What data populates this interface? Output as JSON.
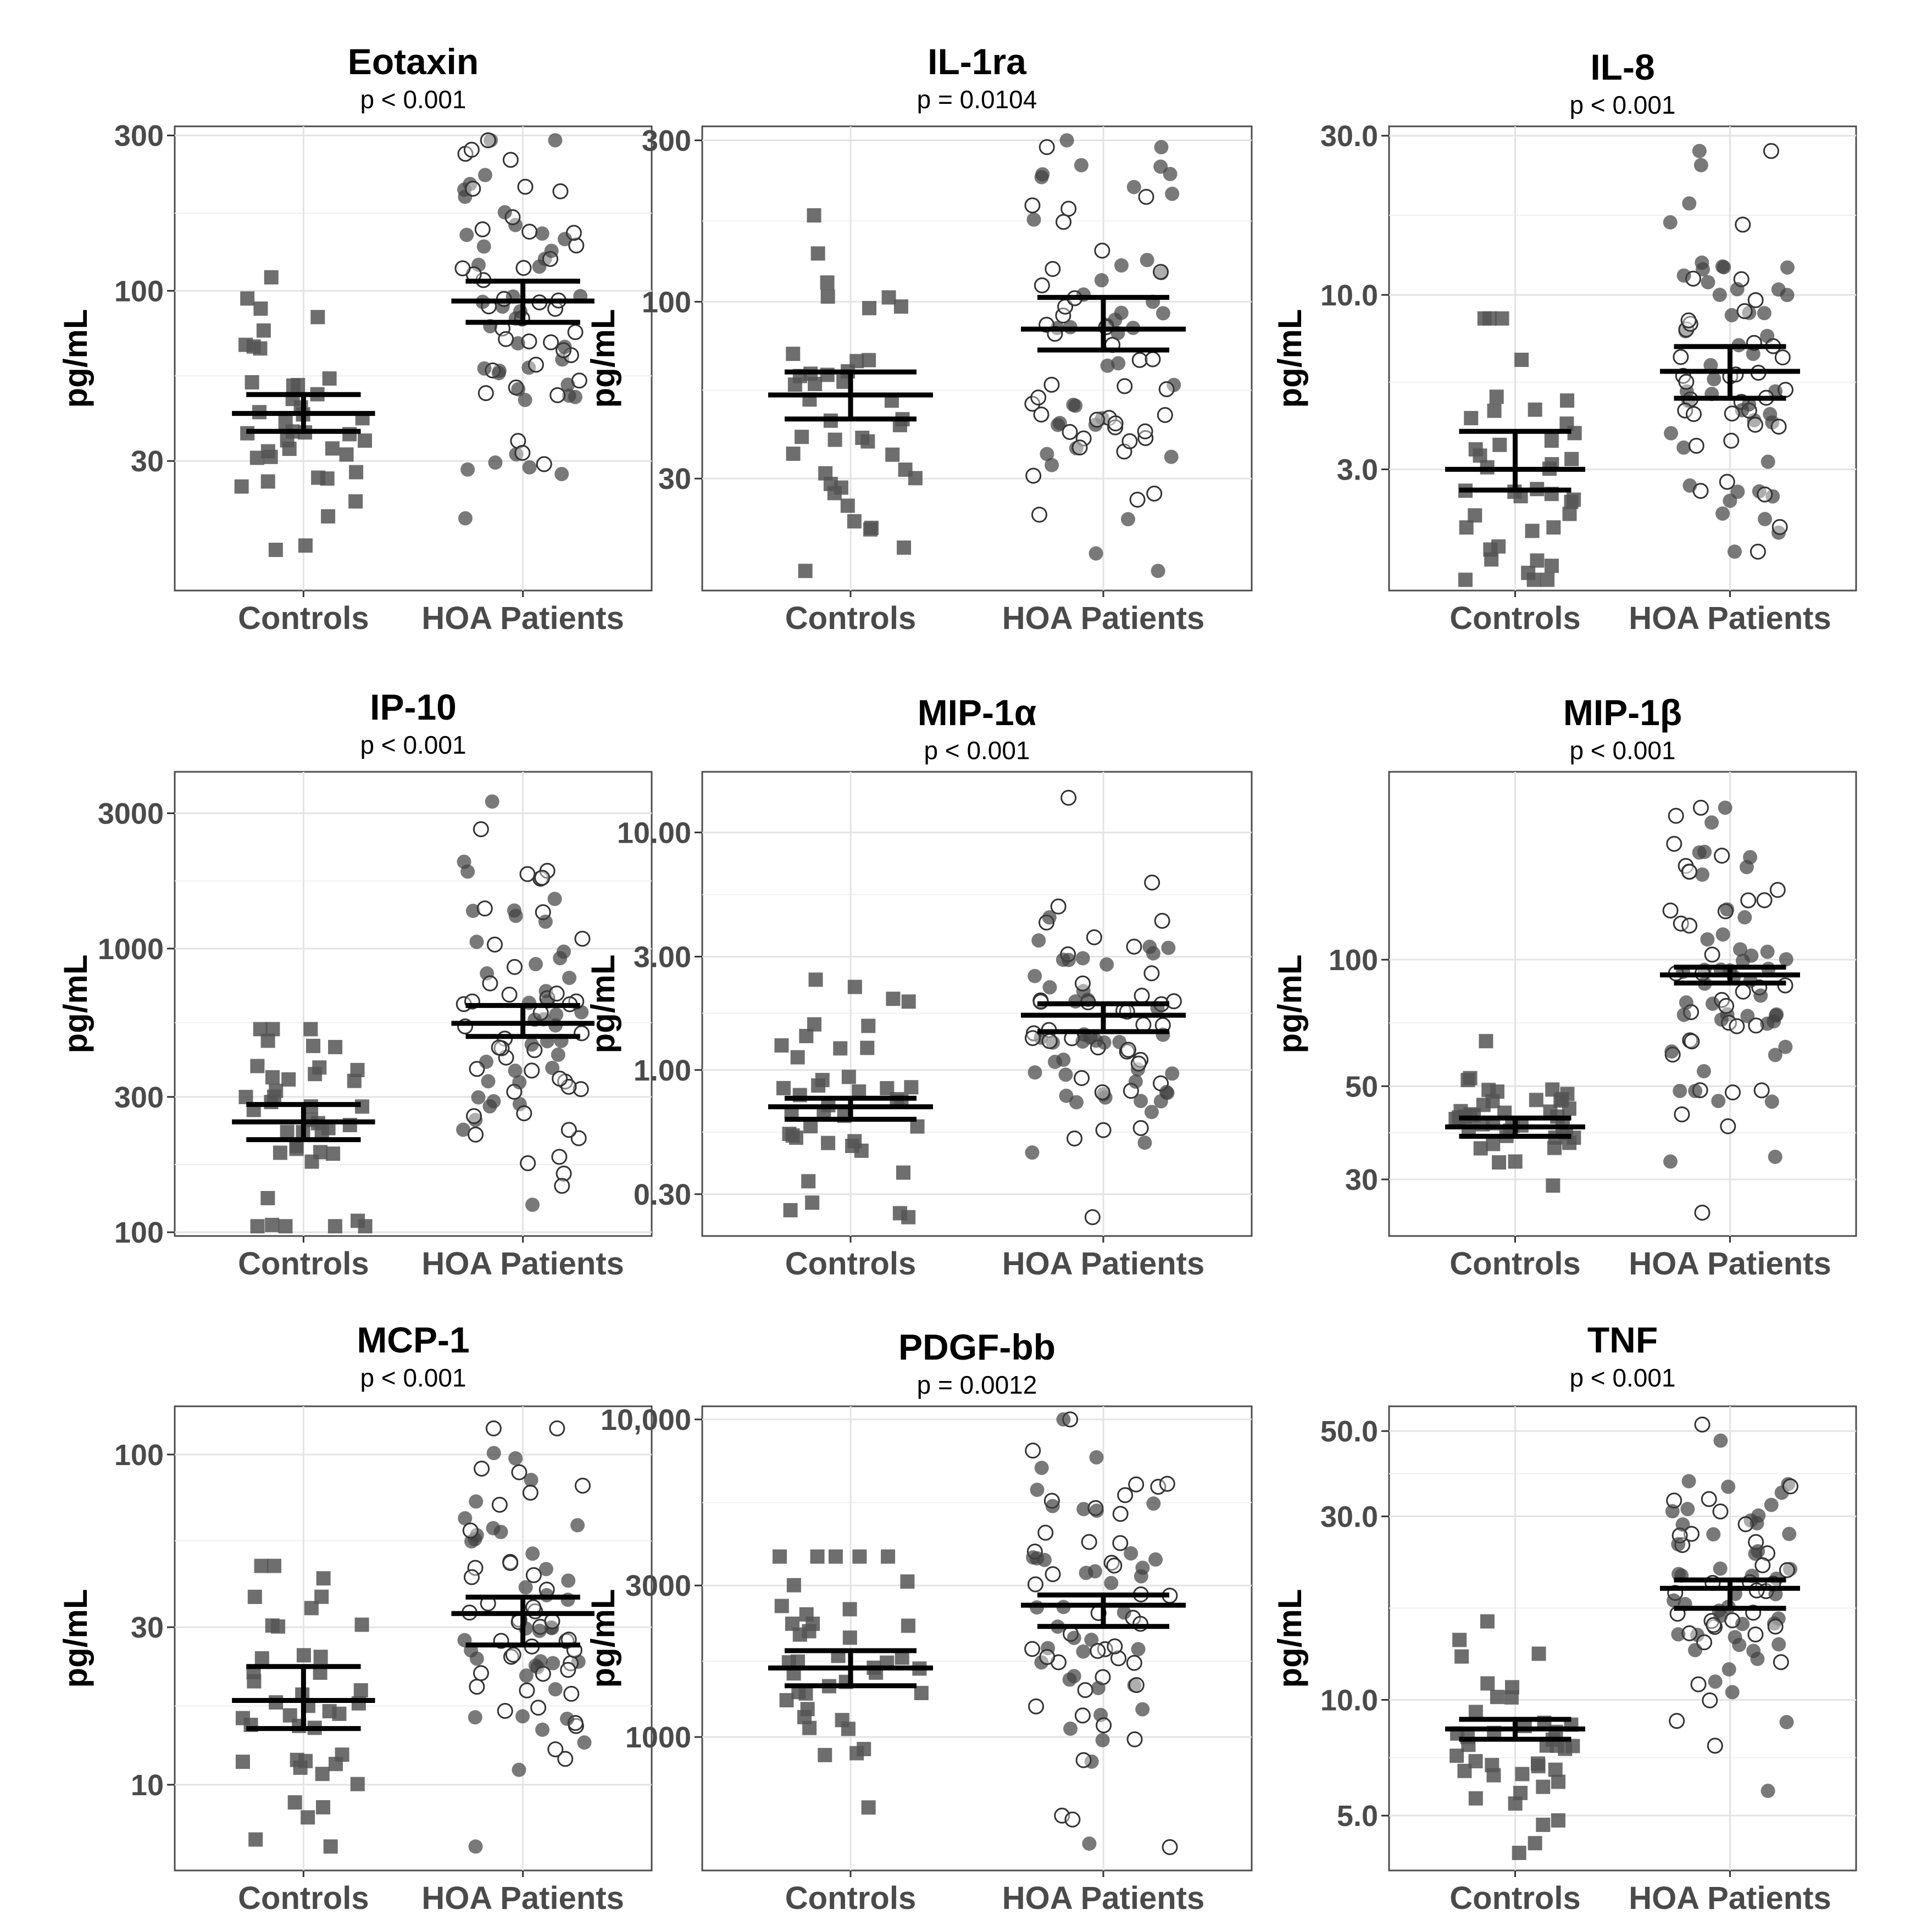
{
  "figure": {
    "ylabel": "pg/mL",
    "categories": [
      "Controls",
      "HOA Patients"
    ]
  },
  "colors": {
    "control_marker": "#555555",
    "filled_patient": "#404040",
    "open_patient_stroke": "#333333",
    "summary": "#000000",
    "grid": "#e3e3e3",
    "frame": "#4d4d4d"
  },
  "chart_data": [
    {
      "type": "scatter",
      "scale": "log10",
      "title": "Eotaxin",
      "pvalue": "p < 0.001",
      "ylabel": "pg/mL",
      "categories": [
        "Controls",
        "HOA Patients"
      ],
      "ylim": [
        12,
        320
      ],
      "yticks": [
        30,
        100,
        300
      ],
      "ytick_labels": [
        "30",
        "100",
        "300"
      ],
      "summary": [
        {
          "group": "Controls",
          "mean": 42,
          "ci": [
            37,
            48
          ]
        },
        {
          "group": "HOA Patients",
          "mean": 93,
          "ci": [
            80,
            107
          ]
        }
      ],
      "groups": [
        {
          "name": "Controls",
          "n": 40,
          "seed": 11,
          "gmean": 42,
          "gsd": 1.5,
          "min": 16,
          "max": 110
        },
        {
          "name": "HOA Patients",
          "n": 80,
          "seed": 12,
          "gmean": 93,
          "gsd": 1.85,
          "min": 20,
          "max": 290
        }
      ]
    },
    {
      "type": "scatter",
      "scale": "log10",
      "title": "IL-1ra",
      "pvalue": "p =  0.0104",
      "ylabel": "pg/mL",
      "categories": [
        "Controls",
        "HOA Patients"
      ],
      "ylim": [
        14,
        330
      ],
      "yticks": [
        30,
        100,
        300
      ],
      "ytick_labels": [
        "30",
        "100",
        "300"
      ],
      "summary": [
        {
          "group": "Controls",
          "mean": 53,
          "ci": [
            45,
            62
          ]
        },
        {
          "group": "HOA Patients",
          "mean": 83,
          "ci": [
            72,
            103
          ]
        }
      ],
      "groups": [
        {
          "name": "Controls",
          "n": 40,
          "seed": 21,
          "gmean": 53,
          "gsd": 1.75,
          "min": 16,
          "max": 180
        },
        {
          "name": "HOA Patients",
          "n": 80,
          "seed": 22,
          "gmean": 83,
          "gsd": 1.95,
          "min": 16,
          "max": 300
        }
      ]
    },
    {
      "type": "scatter",
      "scale": "log10",
      "title": "IL-8",
      "pvalue": "p < 0.001",
      "ylabel": "pg/mL",
      "categories": [
        "Controls",
        "HOA Patients"
      ],
      "ylim": [
        1.3,
        32
      ],
      "yticks": [
        3,
        10,
        30
      ],
      "ytick_labels": [
        "3.0",
        "10.0",
        "30.0"
      ],
      "summary": [
        {
          "group": "Controls",
          "mean": 3.0,
          "ci": [
            2.6,
            3.9
          ]
        },
        {
          "group": "HOA Patients",
          "mean": 5.9,
          "ci": [
            4.9,
            7.0
          ]
        }
      ],
      "groups": [
        {
          "name": "Controls",
          "n": 40,
          "seed": 31,
          "gmean": 3.0,
          "gsd": 1.75,
          "min": 1.4,
          "max": 8.5
        },
        {
          "name": "HOA Patients",
          "n": 80,
          "seed": 32,
          "gmean": 5.9,
          "gsd": 1.85,
          "min": 1.7,
          "max": 27
        }
      ]
    },
    {
      "type": "scatter",
      "scale": "log10",
      "title": "IP-10",
      "pvalue": "p < 0.001",
      "ylabel": "pg/mL",
      "categories": [
        "Controls",
        "HOA Patients"
      ],
      "ylim": [
        97,
        4200
      ],
      "yticks": [
        100,
        300,
        1000,
        3000
      ],
      "ytick_labels": [
        "100",
        "300",
        "1000",
        "3000"
      ],
      "summary": [
        {
          "group": "Controls",
          "mean": 245,
          "ci": [
            212,
            282
          ]
        },
        {
          "group": "HOA Patients",
          "mean": 545,
          "ci": [
            490,
            630
          ]
        }
      ],
      "groups": [
        {
          "name": "Controls",
          "n": 40,
          "seed": 41,
          "gmean": 245,
          "gsd": 1.55,
          "min": 105,
          "max": 520
        },
        {
          "name": "HOA Patients",
          "n": 80,
          "seed": 42,
          "gmean": 545,
          "gsd": 2.0,
          "min": 125,
          "max": 3300
        }
      ]
    },
    {
      "type": "scatter",
      "scale": "log10",
      "title": "MIP-1α",
      "pvalue": "p < 0.001",
      "ylabel": "pg/mL",
      "categories": [
        "Controls",
        "HOA Patients"
      ],
      "ylim": [
        0.2,
        18
      ],
      "yticks": [
        0.3,
        1,
        3,
        10
      ],
      "ytick_labels": [
        "0.30",
        "1.00",
        "3.00",
        "10.00"
      ],
      "summary": [
        {
          "group": "Controls",
          "mean": 0.7,
          "ci": [
            0.62,
            0.76
          ]
        },
        {
          "group": "HOA Patients",
          "mean": 1.7,
          "ci": [
            1.45,
            1.9
          ]
        }
      ],
      "groups": [
        {
          "name": "Controls",
          "n": 40,
          "seed": 51,
          "gmean": 0.7,
          "gsd": 1.7,
          "min": 0.24,
          "max": 2.4
        },
        {
          "name": "HOA Patients",
          "n": 80,
          "seed": 52,
          "gmean": 1.7,
          "gsd": 1.75,
          "min": 0.24,
          "max": 14
        }
      ]
    },
    {
      "type": "scatter",
      "scale": "log10",
      "title": "MIP-1β",
      "pvalue": "p < 0.001",
      "ylabel": "pg/mL",
      "categories": [
        "Controls",
        "HOA Patients"
      ],
      "ylim": [
        22,
        280
      ],
      "yticks": [
        30,
        50,
        100
      ],
      "ytick_labels": [
        "30",
        "50",
        "100"
      ],
      "summary": [
        {
          "group": "Controls",
          "mean": 40,
          "ci": [
            38,
            42
          ]
        },
        {
          "group": "HOA Patients",
          "mean": 92,
          "ci": [
            88,
            96
          ]
        }
      ],
      "groups": [
        {
          "name": "Controls",
          "n": 40,
          "seed": 61,
          "gmean": 40,
          "gsd": 1.15,
          "min": 29,
          "max": 64
        },
        {
          "name": "HOA Patients",
          "n": 80,
          "seed": 62,
          "gmean": 92,
          "gsd": 1.55,
          "min": 25,
          "max": 230
        }
      ]
    },
    {
      "type": "scatter",
      "scale": "log10",
      "title": "MCP-1",
      "pvalue": "p < 0.001",
      "ylabel": "pg/mL",
      "categories": [
        "Controls",
        "HOA Patients"
      ],
      "ylim": [
        5.5,
        140
      ],
      "yticks": [
        10,
        30,
        100
      ],
      "ytick_labels": [
        "10",
        "30",
        "100"
      ],
      "summary": [
        {
          "group": "Controls",
          "mean": 18,
          "ci": [
            14.8,
            22.8
          ]
        },
        {
          "group": "HOA Patients",
          "mean": 33,
          "ci": [
            26.5,
            37
          ]
        }
      ],
      "groups": [
        {
          "name": "Controls",
          "n": 40,
          "seed": 71,
          "gmean": 18,
          "gsd": 1.75,
          "min": 6.5,
          "max": 46
        },
        {
          "name": "HOA Patients",
          "n": 80,
          "seed": 72,
          "gmean": 33,
          "gsd": 1.85,
          "min": 6.5,
          "max": 120
        }
      ]
    },
    {
      "type": "scatter",
      "scale": "log10",
      "title": "PDGF-bb",
      "pvalue": "p =  0.0012",
      "ylabel": "pg/mL",
      "categories": [
        "Controls",
        "HOA Patients"
      ],
      "ylim": [
        380,
        11000
      ],
      "yticks": [
        1000,
        3000,
        10000
      ],
      "ytick_labels": [
        "1000",
        "3000",
        "10,000"
      ],
      "summary": [
        {
          "group": "Controls",
          "mean": 1650,
          "ci": [
            1450,
            1870
          ]
        },
        {
          "group": "HOA Patients",
          "mean": 2600,
          "ci": [
            2230,
            2800
          ]
        }
      ],
      "groups": [
        {
          "name": "Controls",
          "n": 40,
          "seed": 81,
          "gmean": 1650,
          "gsd": 1.65,
          "min": 600,
          "max": 3700
        },
        {
          "name": "HOA Patients",
          "n": 80,
          "seed": 82,
          "gmean": 2600,
          "gsd": 1.95,
          "min": 450,
          "max": 10000
        }
      ]
    },
    {
      "type": "scatter",
      "scale": "log10",
      "title": "TNF",
      "pvalue": "p < 0.001",
      "ylabel": "pg/mL",
      "categories": [
        "Controls",
        "HOA Patients"
      ],
      "ylim": [
        3.6,
        58
      ],
      "yticks": [
        5,
        10,
        30,
        50
      ],
      "ytick_labels": [
        "5.0",
        "10.0",
        "30.0",
        "50.0"
      ],
      "summary": [
        {
          "group": "Controls",
          "mean": 8.4,
          "ci": [
            7.9,
            8.9
          ]
        },
        {
          "group": "HOA Patients",
          "mean": 19.5,
          "ci": [
            17.3,
            20.5
          ]
        }
      ],
      "groups": [
        {
          "name": "Controls",
          "n": 40,
          "seed": 91,
          "gmean": 8.4,
          "gsd": 1.3,
          "min": 4.0,
          "max": 16
        },
        {
          "name": "HOA Patients",
          "n": 80,
          "seed": 92,
          "gmean": 19.5,
          "gsd": 1.6,
          "min": 5.8,
          "max": 52
        }
      ]
    }
  ]
}
